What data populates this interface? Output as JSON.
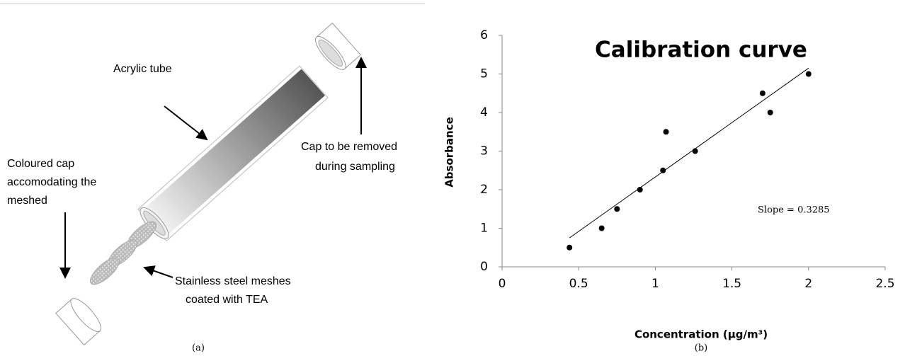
{
  "diagram": {
    "labels": {
      "tube": "Acrylic tube",
      "cap_removed": [
        "Cap to be removed",
        "during sampling"
      ],
      "coloured_cap": [
        "Coloured cap",
        "accomodating the",
        "meshed"
      ],
      "meshes": [
        "Stainless steel meshes",
        "coated with TEA"
      ]
    },
    "caption": "(a)"
  },
  "chart_data": {
    "type": "scatter",
    "title": "Calibration curve",
    "x_label": "Concentration (μg/m³)",
    "y_label": "Absorbance",
    "x": [
      0.44,
      0.65,
      0.75,
      0.9,
      1.05,
      1.07,
      1.26,
      1.7,
      1.75,
      2.0
    ],
    "values": [
      0.5,
      1,
      1.5,
      2,
      2.5,
      3.5,
      3,
      4.5,
      4,
      5
    ],
    "color": "#000000",
    "trendline": {
      "x": [
        0.44,
        2.0
      ],
      "y": [
        0.75,
        5.15
      ]
    },
    "annotation": "Slope = 0.3285",
    "xlim": [
      0,
      2.5
    ],
    "xticks": [
      0,
      0.5,
      1,
      1.5,
      2,
      2.5
    ],
    "ylim": [
      0,
      6
    ],
    "yticks": [
      0,
      1,
      2,
      3,
      4,
      5,
      6
    ],
    "caption": "(b)"
  }
}
